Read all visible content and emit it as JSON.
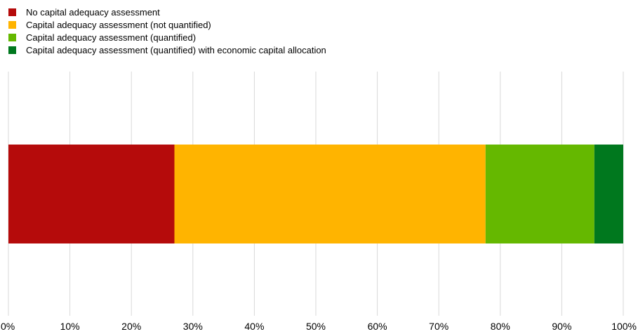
{
  "chart_data": {
    "type": "bar",
    "orientation": "horizontal",
    "stacked": true,
    "categories": [
      ""
    ],
    "series": [
      {
        "name": "No capital adequacy assessment",
        "values": [
          27.0
        ],
        "color": "#b50b0b"
      },
      {
        "name": "Capital adequacy assessment (not quantified)",
        "values": [
          50.6
        ],
        "color": "#ffb400"
      },
      {
        "name": "Capital adequacy assessment (quantified)",
        "values": [
          17.7
        ],
        "color": "#65b800"
      },
      {
        "name": "Capital adequacy assessment (quantified) with economic capital allocation",
        "values": [
          4.7
        ],
        "color": "#00781e"
      }
    ],
    "xlim": [
      0,
      100
    ],
    "xticks": [
      0,
      10,
      20,
      30,
      40,
      50,
      60,
      70,
      80,
      90,
      100
    ],
    "xtick_labels": [
      "0%",
      "10%",
      "20%",
      "30%",
      "40%",
      "50%",
      "60%",
      "70%",
      "80%",
      "90%",
      "100%"
    ],
    "grid": true,
    "legend_position": "top-left",
    "title": "",
    "xlabel": "",
    "ylabel": ""
  }
}
